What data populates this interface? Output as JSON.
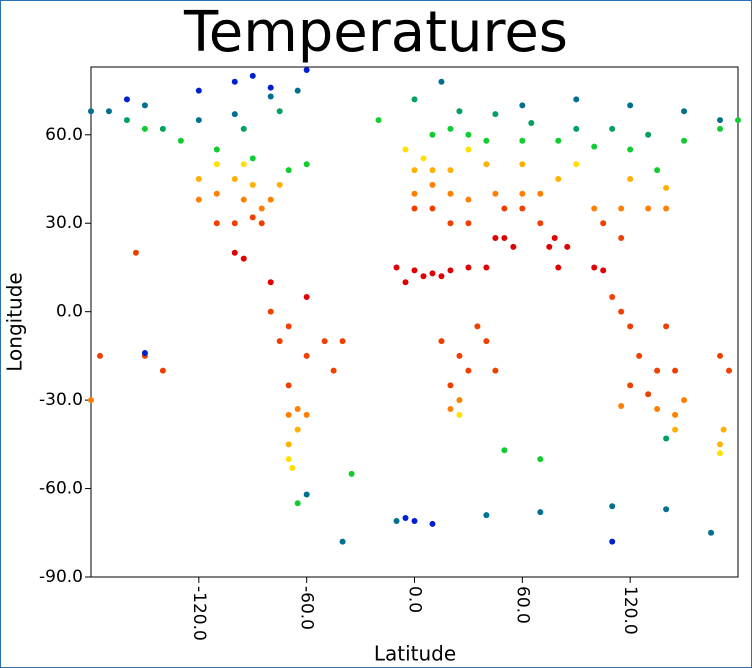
{
  "chart_data": {
    "type": "scatter",
    "title": "Temperatures",
    "xlabel": "Latitude",
    "ylabel": "Longitude",
    "xlim": [
      -180,
      180
    ],
    "ylim": [
      -90,
      83
    ],
    "xticks": [
      {
        "value": -120,
        "label": "-120.0"
      },
      {
        "value": -60,
        "label": "-60.0"
      },
      {
        "value": 0,
        "label": "0.0"
      },
      {
        "value": 60,
        "label": "60.0"
      },
      {
        "value": 120,
        "label": "120.0"
      }
    ],
    "yticks": [
      {
        "value": -90,
        "label": "-90.0"
      },
      {
        "value": -60,
        "label": "-60.0"
      },
      {
        "value": -30,
        "label": "-30.0"
      },
      {
        "value": 0,
        "label": "0.0"
      },
      {
        "value": 30,
        "label": "30.0"
      },
      {
        "value": 60,
        "label": "60.0"
      }
    ],
    "series": [
      {
        "color": "#e00000",
        "x": [
          -10,
          0,
          5,
          10,
          -5,
          15,
          20,
          30,
          40,
          45,
          50,
          75,
          78,
          80,
          85,
          100,
          105,
          -100,
          -95,
          -80,
          -60,
          55
        ],
        "y": [
          15,
          14,
          12,
          13,
          10,
          12,
          14,
          15,
          15,
          25,
          25,
          22,
          25,
          15,
          22,
          15,
          14,
          20,
          18,
          10,
          5,
          22
        ]
      },
      {
        "color": "#f04000",
        "x": [
          -110,
          -100,
          -90,
          -85,
          -75,
          -70,
          -50,
          -45,
          -40,
          -60,
          -80,
          10,
          20,
          30,
          0,
          35,
          25,
          30,
          45,
          40,
          15,
          20,
          125,
          135,
          145,
          120,
          130,
          110,
          115,
          120,
          140,
          105,
          115,
          70,
          60,
          50,
          -150,
          -140,
          170,
          175,
          -175,
          -155,
          -70
        ],
        "y": [
          30,
          30,
          32,
          30,
          -10,
          -5,
          -10,
          -20,
          -10,
          -15,
          0,
          35,
          30,
          30,
          35,
          -5,
          -15,
          -20,
          -20,
          -10,
          -10,
          -25,
          -15,
          -20,
          -20,
          -25,
          -28,
          5,
          0,
          -5,
          -5,
          30,
          25,
          30,
          35,
          35,
          -15,
          -20,
          -15,
          -20,
          -15,
          20,
          -25
        ]
      },
      {
        "color": "#ff8000",
        "x": [
          -120,
          -110,
          -95,
          -85,
          -80,
          0,
          10,
          20,
          30,
          45,
          60,
          70,
          100,
          115,
          130,
          140,
          150,
          145,
          115,
          135,
          25,
          20,
          -65,
          -60,
          -70,
          -180
        ],
        "y": [
          38,
          40,
          38,
          35,
          38,
          40,
          43,
          40,
          38,
          40,
          40,
          40,
          35,
          35,
          35,
          35,
          -30,
          -35,
          -32,
          -33,
          -30,
          -33,
          -33,
          -35,
          -35,
          -30
        ]
      },
      {
        "color": "#ffb000",
        "x": [
          -120,
          -100,
          -90,
          -75,
          0,
          10,
          20,
          40,
          60,
          80,
          120,
          140,
          -65,
          -70,
          145,
          170,
          172
        ],
        "y": [
          45,
          45,
          43,
          43,
          48,
          48,
          48,
          50,
          50,
          45,
          45,
          42,
          -40,
          -45,
          -40,
          -45,
          -40
        ]
      },
      {
        "color": "#ffe000",
        "x": [
          -110,
          -95,
          5,
          -5,
          30,
          90,
          -70,
          -68,
          170,
          25
        ],
        "y": [
          50,
          50,
          52,
          55,
          55,
          50,
          -50,
          -53,
          -48,
          -35
        ]
      },
      {
        "color": "#10cc30",
        "x": [
          -150,
          -130,
          -110,
          -90,
          -70,
          -60,
          20,
          30,
          40,
          60,
          80,
          100,
          120,
          150,
          170,
          -20,
          10,
          -65,
          70,
          50,
          -35,
          135,
          180
        ],
        "y": [
          62,
          58,
          55,
          52,
          48,
          50,
          62,
          60,
          58,
          58,
          58,
          56,
          55,
          58,
          62,
          65,
          60,
          -65,
          -50,
          -47,
          -55,
          48,
          65
        ]
      },
      {
        "color": "#00a060",
        "x": [
          -160,
          -140,
          -95,
          0,
          25,
          45,
          65,
          90,
          110,
          130,
          -75,
          140
        ],
        "y": [
          65,
          62,
          62,
          72,
          68,
          67,
          64,
          62,
          62,
          60,
          68,
          -43
        ]
      },
      {
        "color": "#006f90",
        "x": [
          -170,
          -150,
          -120,
          -100,
          -80,
          -65,
          15,
          60,
          90,
          120,
          150,
          170,
          -180,
          70,
          40,
          110,
          140,
          165,
          -60,
          -10,
          -40
        ],
        "y": [
          68,
          70,
          65,
          67,
          73,
          75,
          78,
          70,
          72,
          70,
          68,
          65,
          68,
          -68,
          -69,
          -66,
          -67,
          -75,
          -62,
          -71,
          -78
        ]
      },
      {
        "color": "#0020d0",
        "x": [
          -120,
          -90,
          -80,
          -60,
          -160,
          -100,
          0,
          10,
          -5,
          110,
          -150
        ],
        "y": [
          75,
          80,
          76,
          82,
          72,
          78,
          -71,
          -72,
          -70,
          -78,
          -14
        ]
      }
    ]
  }
}
